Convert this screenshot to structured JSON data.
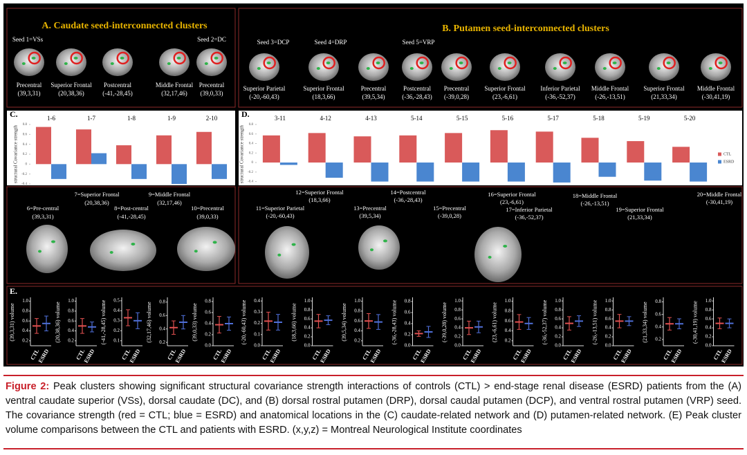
{
  "panel_a": {
    "title": "A. Caudate seed-interconnected clusters",
    "seeds": [
      "Seed 1=VSs",
      "Seed 2=DC"
    ],
    "clusters": [
      {
        "region": "Precentral",
        "coords": "(39,3,31)"
      },
      {
        "region": "Superior Frontal",
        "coords": "(20,38,36)"
      },
      {
        "region": "Postcentral",
        "coords": "(-41,-28,45)"
      },
      {
        "region": "Middle Frontal",
        "coords": "(32,17,46)"
      },
      {
        "region": "Precentral",
        "coords": "(39,0,33)"
      }
    ]
  },
  "panel_b": {
    "title": "B. Putamen seed-interconnected clusters",
    "seeds": [
      "Seed 3=DCP",
      "Seed 4=DRP",
      "Seed 5=VRP"
    ],
    "clusters": [
      {
        "region": "Superior Parietal",
        "coords": "(-20,-60,43)"
      },
      {
        "region": "Superior Frontal",
        "coords": "(18,3,66)"
      },
      {
        "region": "Precentral",
        "coords": "(39,5,34)"
      },
      {
        "region": "Postcentral",
        "coords": "(-36,-28,43)"
      },
      {
        "region": "Precentral",
        "coords": "(-39,0,28)"
      },
      {
        "region": "Superior Frontal",
        "coords": "(23,-6,61)"
      },
      {
        "region": "Inferior Parietal",
        "coords": "(-36,-52,37)"
      },
      {
        "region": "Middle Frontal",
        "coords": "(-26,-13,51)"
      },
      {
        "region": "Superior Frontal",
        "coords": "(21,33,34)"
      },
      {
        "region": "Middle Frontal",
        "coords": "(-30,41,19)"
      }
    ]
  },
  "panel_c": {
    "type": "bar",
    "label": "C.",
    "y_label": "structural Covariance strength",
    "categories": [
      "1-6",
      "1-7",
      "1-8",
      "1-9",
      "2-10"
    ],
    "series": [
      {
        "color": "#d95a5a",
        "values": [
          0.75,
          0.7,
          0.38,
          0.58,
          0.65
        ]
      },
      {
        "color": "#4a86d0",
        "values": [
          -0.3,
          0.22,
          -0.3,
          -0.4,
          -0.3
        ]
      }
    ],
    "ylim": [
      -0.4,
      0.8
    ],
    "yticks": [
      -0.4,
      -0.2,
      0,
      0.2,
      0.4,
      0.6,
      0.8
    ]
  },
  "panel_d": {
    "type": "bar",
    "label": "D.",
    "y_label": "structural Covariance strength",
    "categories": [
      "3-11",
      "4-12",
      "4-13",
      "5-14",
      "5-15",
      "5-16",
      "5-17",
      "5-18",
      "5-19",
      "5-20"
    ],
    "series": [
      {
        "name": "CTL",
        "color": "#d95a5a",
        "values": [
          0.57,
          0.62,
          0.55,
          0.57,
          0.62,
          0.68,
          0.65,
          0.52,
          0.45,
          0.33
        ]
      },
      {
        "name": "ESRD",
        "color": "#4a86d0",
        "values": [
          -0.05,
          -0.32,
          -0.4,
          -0.4,
          -0.4,
          -0.4,
          -0.42,
          -0.3,
          -0.38,
          -0.4
        ]
      }
    ],
    "ylim": [
      -0.45,
      0.8
    ],
    "yticks": [
      -0.4,
      -0.2,
      0,
      0.2,
      0.4,
      0.6,
      0.8
    ]
  },
  "brain_labels": {
    "left": [
      {
        "label": "6=Pre-central",
        "coords": "(39,3,31)"
      },
      {
        "label": "7=Superior Frontal",
        "coords": "(20,38,36)"
      },
      {
        "label": "8=Post-central",
        "coords": "(-41,-28,45)"
      },
      {
        "label": "9=Middle Frontal",
        "coords": "(32,17,46)"
      },
      {
        "label": "10=Precentral",
        "coords": "(39,0,33)"
      }
    ],
    "right": [
      {
        "label": "11=Superior Parietal",
        "coords": "(-20,-60,43)"
      },
      {
        "label": "12=Superior Frontal",
        "coords": "(18,3,66)"
      },
      {
        "label": "13=Precentral",
        "coords": "(39,5,34)"
      },
      {
        "label": "14=Postcentral",
        "coords": "(-36,-28,43)"
      },
      {
        "label": "15=Precentral",
        "coords": "(-39,0,28)"
      },
      {
        "label": "16=Superior Frontal",
        "coords": "(23,-6,61)"
      },
      {
        "label": "17=Inferior Parietal",
        "coords": "(-36,-52,37)"
      },
      {
        "label": "18=Middle Frontal",
        "coords": "(-26,-13,51)"
      },
      {
        "label": "19=Superior Frontal",
        "coords": "(21,33,34)"
      },
      {
        "label": "20=Middle Frontal",
        "coords": "(-30,41,19)"
      }
    ]
  },
  "panel_e": {
    "label": "E.",
    "categories": [
      "CTL",
      "ESRD"
    ],
    "colors": [
      "#e05050",
      "#4f6fd8"
    ],
    "plots": [
      {
        "y_label": "(39,3,31) volume",
        "ylim": [
          0.1,
          1.05
        ],
        "yticks": [
          0.2,
          0.4,
          0.6,
          0.8,
          {
            "value": 1,
            "label": "1.0"
          }
        ],
        "values": [
          0.5,
          0.55
        ],
        "errors": [
          0.15,
          0.15
        ]
      },
      {
        "y_label": "(20,38,36) volume",
        "ylim": [
          0.1,
          1.05
        ],
        "yticks": [
          0.2,
          0.4,
          0.6,
          0.8,
          {
            "value": 1,
            "label": "1.0"
          }
        ],
        "values": [
          0.5,
          0.48
        ],
        "errors": [
          0.15,
          0.1
        ]
      },
      {
        "y_label": "(-41,-28,45) volume",
        "ylim": [
          0.05,
          0.52
        ],
        "yticks": [
          0.1,
          0.2,
          0.3,
          0.4,
          0.5
        ],
        "values": [
          0.33,
          0.3
        ],
        "errors": [
          0.08,
          0.08
        ]
      },
      {
        "y_label": "(32,17,46) volume",
        "ylim": [
          0.15,
          0.85
        ],
        "yticks": [
          0.2,
          0.4,
          0.6,
          0.8
        ],
        "values": [
          0.42,
          0.5
        ],
        "errors": [
          0.1,
          0.1
        ]
      },
      {
        "y_label": "(39,0,33) volume",
        "ylim": [
          0,
          0.85
        ],
        "yticks": [
          {
            "value": 0,
            "label": "0.0"
          },
          0.2,
          0.4,
          0.6,
          0.8
        ],
        "values": [
          0.38,
          0.4
        ],
        "errors": [
          0.15,
          0.12
        ]
      },
      {
        "y_label": "(-20,-60,43) volume",
        "ylim": [
          0,
          0.42
        ],
        "yticks": [
          {
            "value": 0,
            "label": "0.0"
          },
          0.1,
          0.2,
          0.3,
          0.4
        ],
        "values": [
          0.22,
          0.21
        ],
        "errors": [
          0.08,
          0.07
        ]
      },
      {
        "y_label": "(18,3,66) volume",
        "ylim": [
          0,
          1.05
        ],
        "yticks": [
          {
            "value": 0,
            "label": "0.0"
          },
          0.2,
          0.4,
          0.6,
          0.8,
          {
            "value": 1,
            "label": "1.0"
          }
        ],
        "values": [
          0.55,
          0.57
        ],
        "errors": [
          0.15,
          0.1
        ]
      },
      {
        "y_label": "(39,5,34) volume",
        "ylim": [
          0.1,
          1.05
        ],
        "yticks": [
          0.2,
          0.4,
          0.6,
          0.8,
          {
            "value": 1,
            "label": "1.0"
          }
        ],
        "values": [
          0.6,
          0.58
        ],
        "errors": [
          0.15,
          0.15
        ]
      },
      {
        "y_label": "(-36,-28,43) volume",
        "ylim": [
          0,
          0.85
        ],
        "yticks": [
          {
            "value": 0,
            "label": "0.0"
          },
          0.2,
          0.4,
          0.6,
          0.8
        ],
        "values": [
          0.22,
          0.25
        ],
        "errors": [
          0.05,
          0.1
        ]
      },
      {
        "y_label": "(-39,0,28) volume",
        "ylim": [
          0,
          1.05
        ],
        "yticks": [
          {
            "value": 0,
            "label": "0.0"
          },
          0.2,
          0.4,
          0.6,
          0.8,
          {
            "value": 1,
            "label": "1.0"
          }
        ],
        "values": [
          0.4,
          0.42
        ],
        "errors": [
          0.15,
          0.13
        ]
      },
      {
        "y_label": "(23,-6,61) volume",
        "ylim": [
          0.1,
          1.05
        ],
        "yticks": [
          0.2,
          0.4,
          0.6,
          0.8,
          {
            "value": 1,
            "label": "1.0"
          }
        ],
        "values": [
          0.58,
          0.55
        ],
        "errors": [
          0.15,
          0.12
        ]
      },
      {
        "y_label": "(-36,-52,37) volume",
        "ylim": [
          0,
          1.05
        ],
        "yticks": [
          {
            "value": 0,
            "label": "0.0"
          },
          0.2,
          0.4,
          0.6,
          0.8,
          {
            "value": 1,
            "label": "1.0"
          }
        ],
        "values": [
          0.5,
          0.55
        ],
        "errors": [
          0.15,
          0.12
        ]
      },
      {
        "y_label": "(-26,-13,51) volume",
        "ylim": [
          0,
          1.05
        ],
        "yticks": [
          {
            "value": 0,
            "label": "0.0"
          },
          0.2,
          0.4,
          0.6,
          0.8,
          {
            "value": 1,
            "label": "1.0"
          }
        ],
        "values": [
          0.55,
          0.55
        ],
        "errors": [
          0.15,
          0.1
        ]
      },
      {
        "y_label": "(21,33,34) volume",
        "ylim": [
          0.1,
          0.85
        ],
        "yticks": [
          0.2,
          0.4,
          0.6,
          0.8
        ],
        "values": [
          0.45,
          0.45
        ],
        "errors": [
          0.1,
          0.08
        ]
      },
      {
        "y_label": "(-30,41,19) volume",
        "ylim": [
          0,
          1.05
        ],
        "yticks": [
          {
            "value": 0,
            "label": "0.0"
          },
          0.2,
          0.4,
          0.6,
          0.8,
          {
            "value": 1,
            "label": "1.0"
          }
        ],
        "values": [
          0.5,
          0.5
        ],
        "errors": [
          0.12,
          0.1
        ]
      }
    ]
  },
  "caption": {
    "label": "Figure 2:",
    "text": "Peak clusters showing significant structural covariance strength interactions of controls (CTL) > end-stage renal disease (ESRD) patients from the (A) ventral caudate superior (VSs), dorsal caudate (DC), and (B) dorsal rostral putamen (DRP), dorsal caudal putamen (DCP), and ventral rostral putamen (VRP) seed. The covariance strength (red = CTL; blue = ESRD) and anatomical locations in the (C) caudate-related network and (D) putamen-related network. (E) Peak cluster volume comparisons between the CTL and patients with ESRD. (x,y,z) = Montreal Neurological Institute coordinates"
  }
}
